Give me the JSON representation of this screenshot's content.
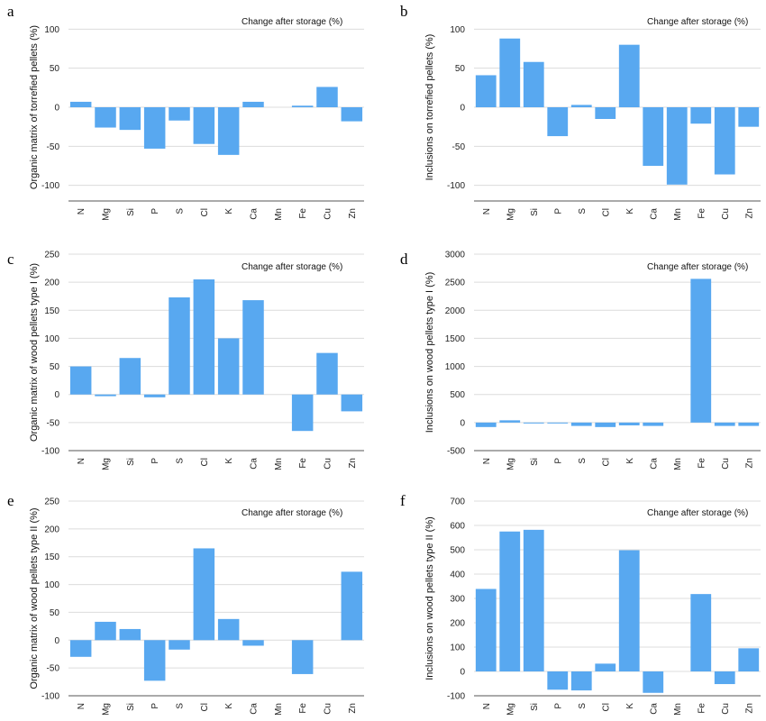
{
  "figure": {
    "colors": {
      "bar": "#58a8f0",
      "grid": "#dcdcdc",
      "axis": "#555555"
    }
  },
  "chart_data": [
    {
      "panel": "a",
      "type": "bar",
      "title": "Change after storage (%)",
      "ylabel": "Organic matrix of torrefied pellets (%)",
      "xlabel": "",
      "categories": [
        "N",
        "Mg",
        "Si",
        "P",
        "S",
        "Cl",
        "K",
        "Ca",
        "Mn",
        "Fe",
        "Cu",
        "Zn"
      ],
      "values": [
        7,
        -26,
        -29,
        -53,
        -17,
        -47,
        -61,
        7,
        0,
        2,
        26,
        -18
      ],
      "ylim": [
        -120,
        120
      ],
      "yticks": [
        -100,
        -50,
        0,
        50,
        100
      ],
      "grid": true
    },
    {
      "panel": "b",
      "type": "bar",
      "title": "Change after storage (%)",
      "ylabel": "Inclusions on torrefied pellets (%)",
      "xlabel": "",
      "categories": [
        "N",
        "Mg",
        "Si",
        "P",
        "S",
        "Cl",
        "K",
        "Ca",
        "Mn",
        "Fe",
        "Cu",
        "Zn"
      ],
      "values": [
        41,
        88,
        58,
        -37,
        3,
        -15,
        80,
        -75,
        -99,
        -21,
        -86,
        -25
      ],
      "ylim": [
        -120,
        120
      ],
      "yticks": [
        -100,
        -50,
        0,
        50,
        100
      ],
      "grid": true
    },
    {
      "panel": "c",
      "type": "bar",
      "title": "Change after storage (%)",
      "ylabel": "Organic matrix of wood pellets type I (%)",
      "xlabel": "",
      "categories": [
        "N",
        "Mg",
        "Si",
        "P",
        "S",
        "Cl",
        "K",
        "Ca",
        "Mn",
        "Fe",
        "Cu",
        "Zn"
      ],
      "values": [
        50,
        -3,
        65,
        -5,
        173,
        205,
        100,
        168,
        0,
        -65,
        74,
        -30
      ],
      "ylim": [
        -100,
        250
      ],
      "yticks": [
        -100,
        -50,
        0,
        50,
        100,
        150,
        200,
        250
      ],
      "grid": true
    },
    {
      "panel": "d",
      "type": "bar",
      "title": "Change after storage (%)",
      "ylabel": "Inclusions on wood pellets type I (%)",
      "xlabel": "",
      "categories": [
        "N",
        "Mg",
        "Si",
        "P",
        "S",
        "Cl",
        "K",
        "Ca",
        "Mn",
        "Fe",
        "Cu",
        "Zn"
      ],
      "values": [
        -80,
        40,
        -5,
        -5,
        -60,
        -80,
        -50,
        -60,
        0,
        2560,
        -60,
        -60
      ],
      "ylim": [
        -500,
        3000
      ],
      "yticks": [
        -500,
        0,
        500,
        1000,
        1500,
        2000,
        2500,
        3000
      ],
      "grid": true
    },
    {
      "panel": "e",
      "type": "bar",
      "title": "Change after storage (%)",
      "ylabel": "Organic matrix of wood pellets type II (%)",
      "xlabel": "",
      "categories": [
        "N",
        "Mg",
        "Si",
        "P",
        "S",
        "Cl",
        "K",
        "Ca",
        "Mn",
        "Fe",
        "Cu",
        "Zn"
      ],
      "values": [
        -30,
        33,
        20,
        -73,
        -17,
        165,
        38,
        -10,
        0,
        -61,
        0,
        123
      ],
      "ylim": [
        -100,
        250
      ],
      "yticks": [
        -100,
        -50,
        0,
        50,
        100,
        150,
        200,
        250
      ],
      "grid": true
    },
    {
      "panel": "f",
      "type": "bar",
      "title": "Change after storage (%)",
      "ylabel": "Inclusions on wood pellets type II (%)",
      "xlabel": "",
      "categories": [
        "N",
        "Mg",
        "Si",
        "P",
        "S",
        "Cl",
        "K",
        "Ca",
        "Mn",
        "Fe",
        "Cu",
        "Zn"
      ],
      "values": [
        339,
        575,
        582,
        -75,
        -78,
        32,
        498,
        -88,
        0,
        318,
        -52,
        95
      ],
      "ylim": [
        -100,
        700
      ],
      "yticks": [
        -100,
        0,
        100,
        200,
        300,
        400,
        500,
        600,
        700
      ],
      "grid": true
    }
  ]
}
